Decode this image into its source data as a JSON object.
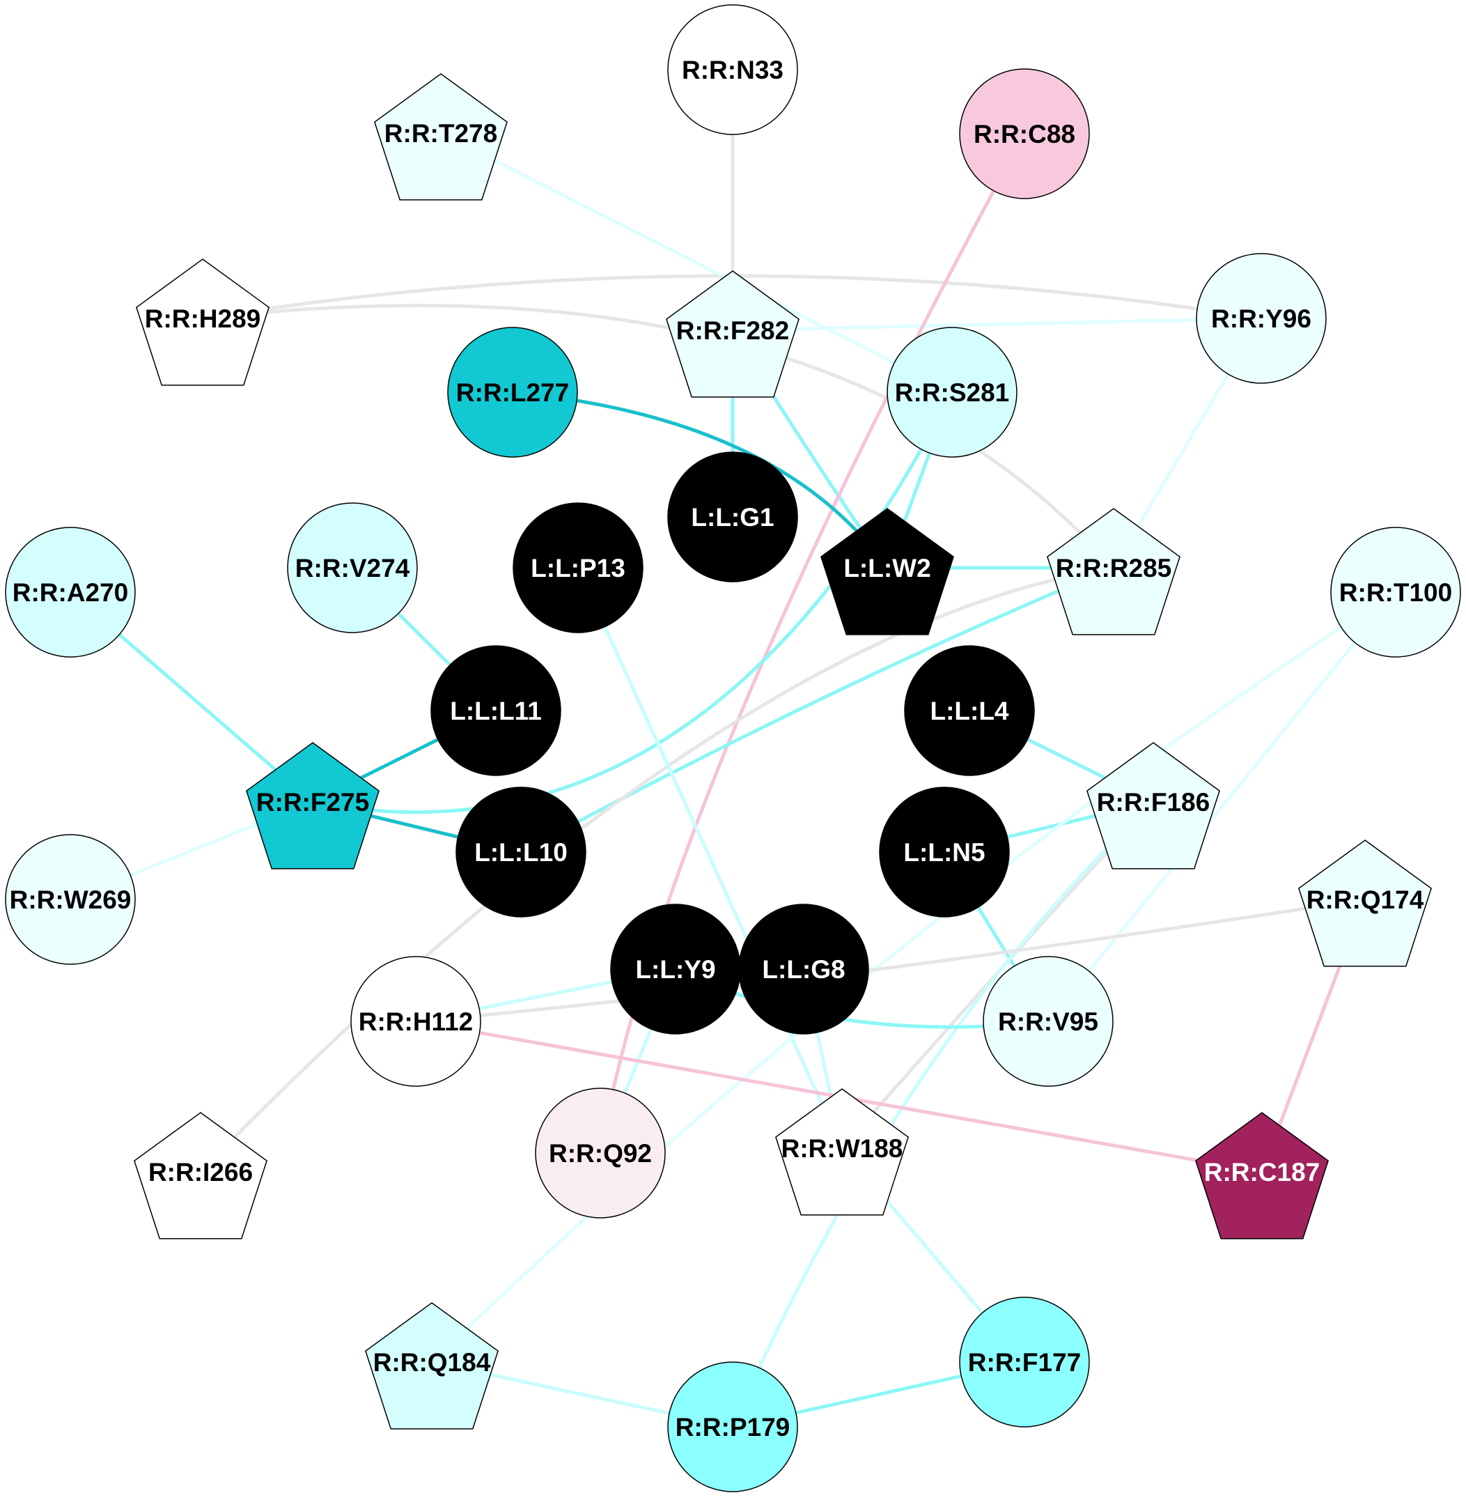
{
  "diagram": {
    "colors": {
      "ligand": "#000000",
      "receptor_white": "#ffffff",
      "receptor_pale_cyan": "#ebfffe",
      "receptor_light_cyan": "#d4fdfd",
      "receptor_mid_cyan": "#8cffff",
      "receptor_dark_cyan": "#12c8d2",
      "receptor_pale_pink": "#f9ecf3",
      "receptor_pink": "#f8c9dd",
      "receptor_magenta": "#a1225d",
      "edge_gray": "#e6e6e6",
      "edge_pale_cyan": "#e0feff",
      "edge_light_cyan": "#c8fdfd",
      "edge_cyan": "#8cf6f6",
      "edge_dark_cyan": "#19bfcc",
      "edge_pink": "#f6c3d8"
    },
    "nodes": [
      {
        "id": "R:R:N33",
        "label": "R:R:N33",
        "shape": "circle",
        "fill": "receptor_white",
        "text_color": "#000000"
      },
      {
        "id": "R:R:C88",
        "label": "R:R:C88",
        "shape": "circle",
        "fill": "receptor_pink",
        "text_color": "#000000"
      },
      {
        "id": "R:R:T278",
        "label": "R:R:T278",
        "shape": "pentagon",
        "fill": "receptor_pale_cyan",
        "text_color": "#000000"
      },
      {
        "id": "R:R:H289",
        "label": "R:R:H289",
        "shape": "pentagon",
        "fill": "receptor_white",
        "text_color": "#000000"
      },
      {
        "id": "R:R:F282",
        "label": "R:R:F282",
        "shape": "pentagon",
        "fill": "receptor_pale_cyan",
        "text_color": "#000000"
      },
      {
        "id": "R:R:Y96",
        "label": "R:R:Y96",
        "shape": "circle",
        "fill": "receptor_pale_cyan",
        "text_color": "#000000"
      },
      {
        "id": "R:R:L277",
        "label": "R:R:L277",
        "shape": "circle",
        "fill": "receptor_dark_cyan",
        "text_color": "#000000"
      },
      {
        "id": "R:R:S281",
        "label": "R:R:S281",
        "shape": "circle",
        "fill": "receptor_light_cyan",
        "text_color": "#000000"
      },
      {
        "id": "L:L:G1",
        "label": "L:L:G1",
        "shape": "circle",
        "fill": "ligand",
        "text_color": "#ffffff"
      },
      {
        "id": "L:L:P13",
        "label": "L:L:P13",
        "shape": "circle",
        "fill": "ligand",
        "text_color": "#ffffff"
      },
      {
        "id": "L:L:W2",
        "label": "L:L:W2",
        "shape": "pentagon",
        "fill": "ligand",
        "text_color": "#ffffff"
      },
      {
        "id": "R:R:R285",
        "label": "R:R:R285",
        "shape": "pentagon",
        "fill": "receptor_pale_cyan",
        "text_color": "#000000"
      },
      {
        "id": "R:R:A270",
        "label": "R:R:A270",
        "shape": "circle",
        "fill": "receptor_light_cyan",
        "text_color": "#000000"
      },
      {
        "id": "R:R:V274",
        "label": "R:R:V274",
        "shape": "circle",
        "fill": "receptor_light_cyan",
        "text_color": "#000000"
      },
      {
        "id": "R:R:T100",
        "label": "R:R:T100",
        "shape": "circle",
        "fill": "receptor_pale_cyan",
        "text_color": "#000000"
      },
      {
        "id": "L:L:L11",
        "label": "L:L:L11",
        "shape": "circle",
        "fill": "ligand",
        "text_color": "#ffffff"
      },
      {
        "id": "L:L:L4",
        "label": "L:L:L4",
        "shape": "circle",
        "fill": "ligand",
        "text_color": "#ffffff"
      },
      {
        "id": "R:R:F275",
        "label": "R:R:F275",
        "shape": "pentagon",
        "fill": "receptor_dark_cyan",
        "text_color": "#000000"
      },
      {
        "id": "R:R:F186",
        "label": "R:R:F186",
        "shape": "pentagon",
        "fill": "receptor_pale_cyan",
        "text_color": "#000000"
      },
      {
        "id": "L:L:L10",
        "label": "L:L:L10",
        "shape": "circle",
        "fill": "ligand",
        "text_color": "#ffffff"
      },
      {
        "id": "L:L:N5",
        "label": "L:L:N5",
        "shape": "circle",
        "fill": "ligand",
        "text_color": "#ffffff"
      },
      {
        "id": "R:R:W269",
        "label": "R:R:W269",
        "shape": "circle",
        "fill": "receptor_pale_cyan",
        "text_color": "#000000"
      },
      {
        "id": "R:R:Q174",
        "label": "R:R:Q174",
        "shape": "pentagon",
        "fill": "receptor_pale_cyan",
        "text_color": "#000000"
      },
      {
        "id": "L:L:Y9",
        "label": "L:L:Y9",
        "shape": "circle",
        "fill": "ligand",
        "text_color": "#ffffff"
      },
      {
        "id": "L:L:G8",
        "label": "L:L:G8",
        "shape": "circle",
        "fill": "ligand",
        "text_color": "#ffffff"
      },
      {
        "id": "R:R:H112",
        "label": "R:R:H112",
        "shape": "circle",
        "fill": "receptor_white",
        "text_color": "#000000"
      },
      {
        "id": "R:R:V95",
        "label": "R:R:V95",
        "shape": "circle",
        "fill": "receptor_pale_cyan",
        "text_color": "#000000"
      },
      {
        "id": "R:R:Q92",
        "label": "R:R:Q92",
        "shape": "circle",
        "fill": "receptor_pale_pink",
        "text_color": "#000000"
      },
      {
        "id": "R:R:W188",
        "label": "R:R:W188",
        "shape": "pentagon",
        "fill": "receptor_white",
        "text_color": "#000000"
      },
      {
        "id": "R:R:I266",
        "label": "R:R:I266",
        "shape": "pentagon",
        "fill": "receptor_white",
        "text_color": "#000000"
      },
      {
        "id": "R:R:C187",
        "label": "R:R:C187",
        "shape": "pentagon",
        "fill": "receptor_magenta",
        "text_color": "#ffffff"
      },
      {
        "id": "R:R:Q184",
        "label": "R:R:Q184",
        "shape": "pentagon",
        "fill": "receptor_light_cyan",
        "text_color": "#000000"
      },
      {
        "id": "R:R:F177",
        "label": "R:R:F177",
        "shape": "circle",
        "fill": "receptor_mid_cyan",
        "text_color": "#000000"
      },
      {
        "id": "R:R:P179",
        "label": "R:R:P179",
        "shape": "circle",
        "fill": "receptor_mid_cyan",
        "text_color": "#000000"
      }
    ],
    "edges": [
      {
        "from": "R:R:N33",
        "to": "R:R:F282",
        "color": "edge_gray"
      },
      {
        "from": "R:R:H289",
        "to": "R:R:Y96",
        "color": "edge_gray"
      },
      {
        "from": "R:R:H289",
        "to": "R:R:R285",
        "color": "edge_gray"
      },
      {
        "from": "R:R:T278",
        "to": "R:R:S281",
        "color": "edge_pale_cyan"
      },
      {
        "from": "R:R:F282",
        "to": "R:R:Y96",
        "color": "edge_pale_cyan"
      },
      {
        "from": "R:R:F282",
        "to": "L:L:G1",
        "color": "edge_cyan"
      },
      {
        "from": "R:R:F282",
        "to": "L:L:W2",
        "color": "edge_cyan"
      },
      {
        "from": "R:R:C88",
        "to": "R:R:Q92",
        "color": "edge_pink"
      },
      {
        "from": "R:R:L277",
        "to": "L:L:W2",
        "color": "edge_dark_cyan"
      },
      {
        "from": "R:R:S281",
        "to": "L:L:W2",
        "color": "edge_cyan"
      },
      {
        "from": "R:R:S281",
        "to": "R:R:F275",
        "color": "edge_cyan"
      },
      {
        "from": "L:L:W2",
        "to": "R:R:R285",
        "color": "edge_cyan"
      },
      {
        "from": "R:R:Y96",
        "to": "R:R:R285",
        "color": "edge_pale_cyan"
      },
      {
        "from": "R:R:R285",
        "to": "L:L:L10",
        "color": "edge_cyan"
      },
      {
        "from": "R:R:R285",
        "to": "R:R:I266",
        "color": "edge_gray"
      },
      {
        "from": "R:R:A270",
        "to": "R:R:F275",
        "color": "edge_cyan"
      },
      {
        "from": "R:R:V274",
        "to": "L:L:L11",
        "color": "edge_cyan"
      },
      {
        "from": "L:L:L11",
        "to": "R:R:F275",
        "color": "edge_dark_cyan"
      },
      {
        "from": "R:R:F275",
        "to": "L:L:L10",
        "color": "edge_dark_cyan"
      },
      {
        "from": "R:R:F275",
        "to": "R:R:W269",
        "color": "edge_pale_cyan"
      },
      {
        "from": "L:L:P13",
        "to": "R:R:W188",
        "color": "edge_light_cyan"
      },
      {
        "from": "L:L:L4",
        "to": "R:R:F186",
        "color": "edge_cyan"
      },
      {
        "from": "L:L:N5",
        "to": "R:R:F186",
        "color": "edge_cyan"
      },
      {
        "from": "L:L:N5",
        "to": "R:R:V95",
        "color": "edge_cyan"
      },
      {
        "from": "R:R:T100",
        "to": "R:R:Q184",
        "color": "edge_pale_cyan"
      },
      {
        "from": "R:R:T100",
        "to": "R:R:V95",
        "color": "edge_pale_cyan"
      },
      {
        "from": "R:R:F186",
        "to": "R:R:W188",
        "color": "edge_gray"
      },
      {
        "from": "R:R:F186",
        "to": "R:R:P179",
        "color": "edge_light_cyan"
      },
      {
        "from": "R:R:Q174",
        "to": "R:R:H112",
        "color": "edge_gray"
      },
      {
        "from": "R:R:Q174",
        "to": "R:R:C187",
        "color": "edge_pink"
      },
      {
        "from": "L:L:Y9",
        "to": "R:R:H112",
        "color": "edge_light_cyan"
      },
      {
        "from": "L:L:Y9",
        "to": "R:R:V95",
        "color": "edge_cyan"
      },
      {
        "from": "L:L:Y9",
        "to": "R:R:Q92",
        "color": "edge_light_cyan"
      },
      {
        "from": "L:L:G8",
        "to": "R:R:W188",
        "color": "edge_light_cyan"
      },
      {
        "from": "R:R:H112",
        "to": "R:R:C187",
        "color": "edge_pink"
      },
      {
        "from": "R:R:W188",
        "to": "R:R:F177",
        "color": "edge_light_cyan"
      },
      {
        "from": "R:R:Q184",
        "to": "R:R:P179",
        "color": "edge_light_cyan"
      },
      {
        "from": "R:R:F177",
        "to": "R:R:P179",
        "color": "edge_cyan"
      }
    ]
  }
}
